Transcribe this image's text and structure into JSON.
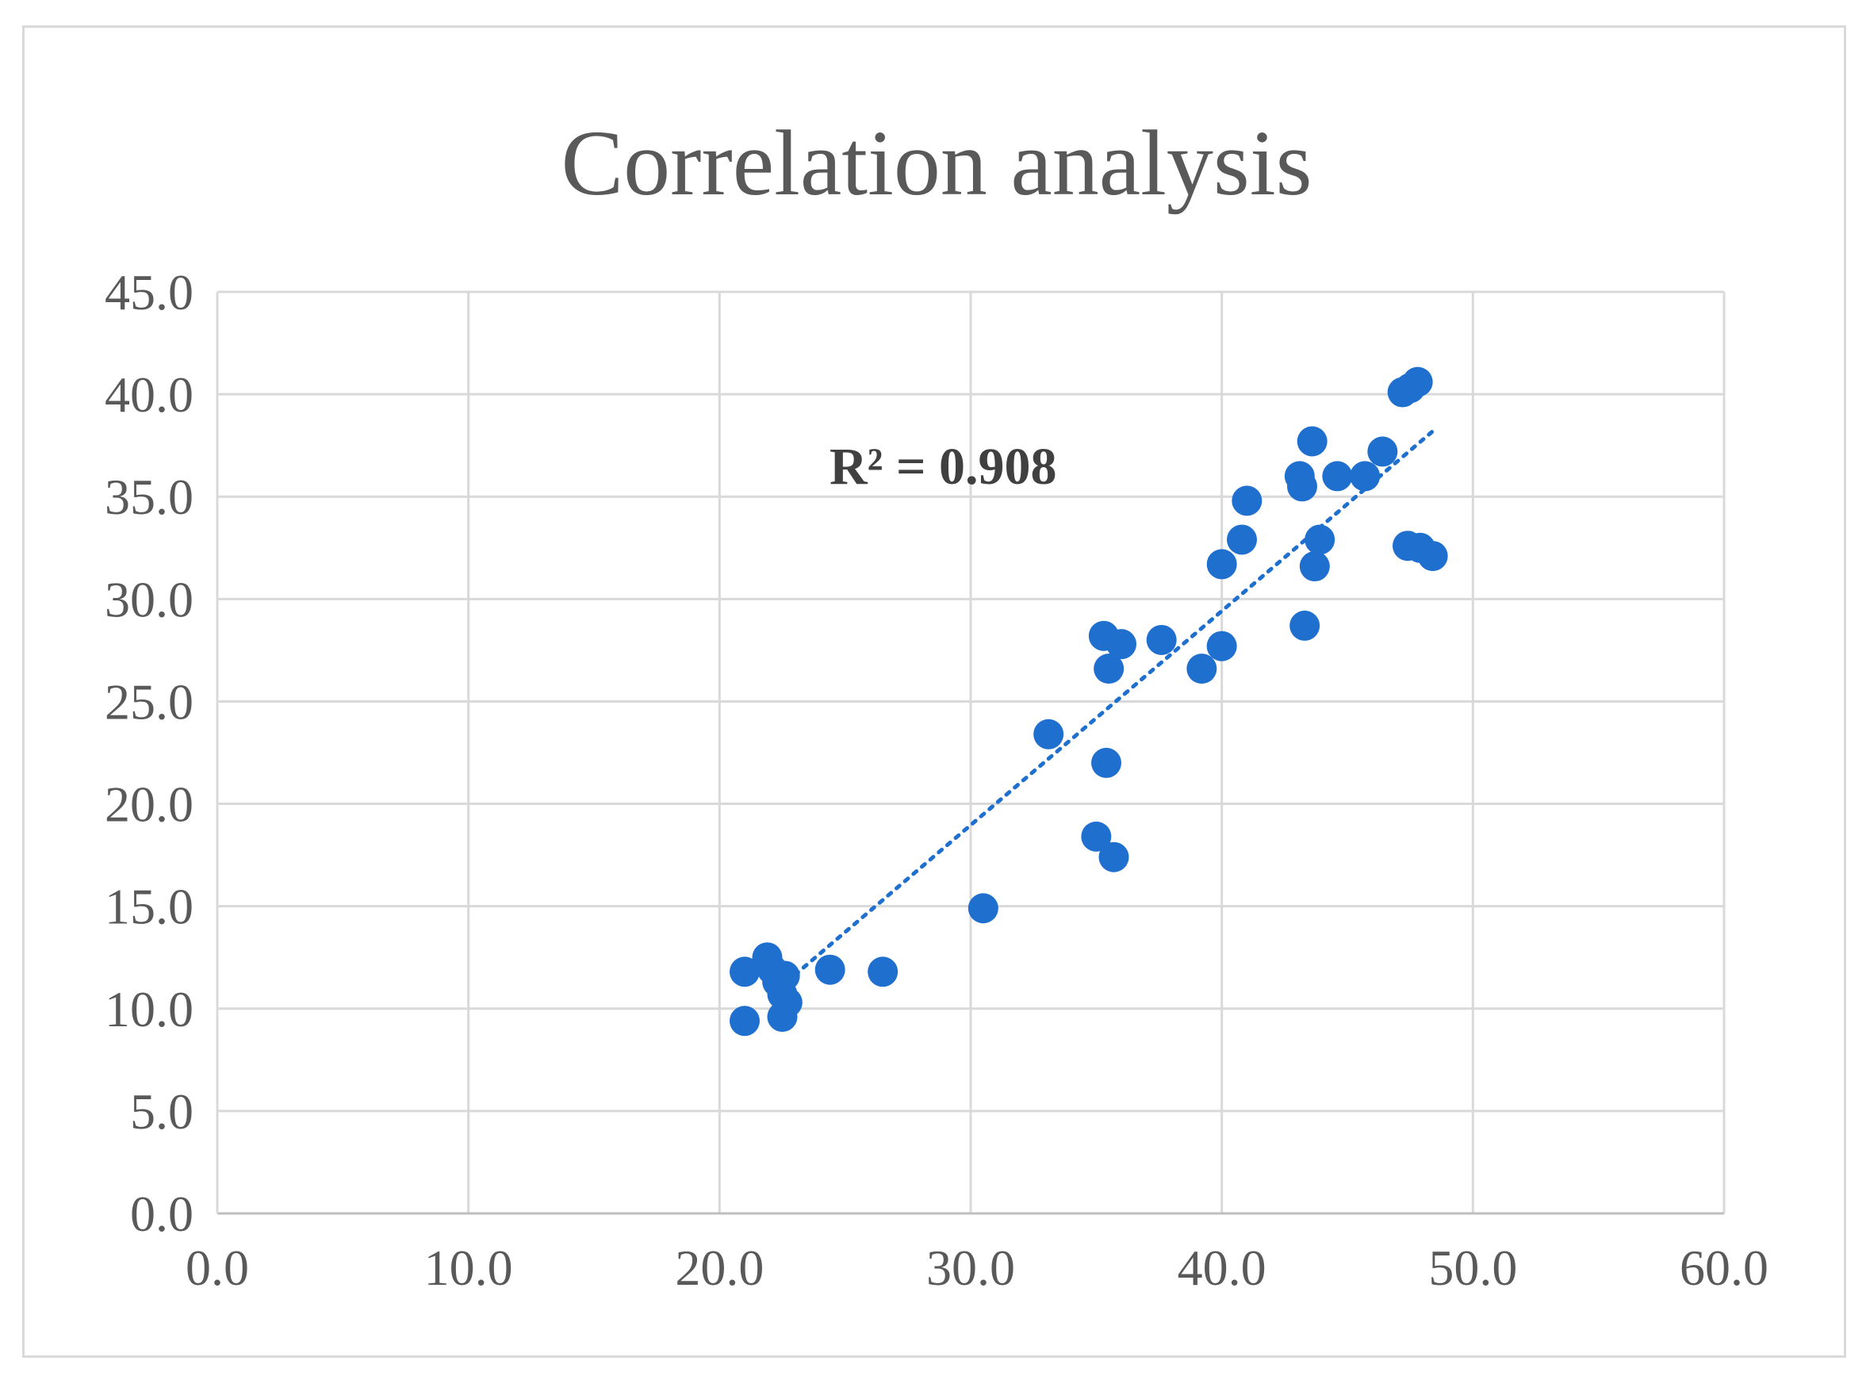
{
  "chart_data": {
    "type": "scatter",
    "title": "Correlation analysis",
    "xlabel": "",
    "ylabel": "",
    "xlim": [
      0,
      60
    ],
    "ylim": [
      0,
      45
    ],
    "x_ticks": [
      "0.0",
      "10.0",
      "20.0",
      "30.0",
      "40.0",
      "50.0",
      "60.0"
    ],
    "y_ticks": [
      "0.0",
      "5.0",
      "10.0",
      "15.0",
      "20.0",
      "25.0",
      "30.0",
      "35.0",
      "40.0",
      "45.0"
    ],
    "grid": true,
    "legend": "none",
    "annotation": "R² = 0.908",
    "trendline": {
      "type": "linear",
      "style": "dotted",
      "x_start": 22.0,
      "y_start": 10.6,
      "x_end": 48.5,
      "y_end": 38.3
    },
    "series": [
      {
        "color": "#1f6fcf",
        "points": [
          [
            21.0,
            11.8
          ],
          [
            21.0,
            9.4
          ],
          [
            21.9,
            12.5
          ],
          [
            22.1,
            11.9
          ],
          [
            22.3,
            11.3
          ],
          [
            22.5,
            10.7
          ],
          [
            22.6,
            11.6
          ],
          [
            22.5,
            9.6
          ],
          [
            22.7,
            10.3
          ],
          [
            24.4,
            11.9
          ],
          [
            26.5,
            11.8
          ],
          [
            30.5,
            14.9
          ],
          [
            33.1,
            23.4
          ],
          [
            35.0,
            18.4
          ],
          [
            35.3,
            28.2
          ],
          [
            35.4,
            22.0
          ],
          [
            35.5,
            26.6
          ],
          [
            35.7,
            17.4
          ],
          [
            36.0,
            27.8
          ],
          [
            37.6,
            28.0
          ],
          [
            39.2,
            26.6
          ],
          [
            40.0,
            31.7
          ],
          [
            40.0,
            27.7
          ],
          [
            40.8,
            32.9
          ],
          [
            41.0,
            34.8
          ],
          [
            43.1,
            36.0
          ],
          [
            43.2,
            35.5
          ],
          [
            43.3,
            28.7
          ],
          [
            43.6,
            37.7
          ],
          [
            43.7,
            31.6
          ],
          [
            43.9,
            32.9
          ],
          [
            44.6,
            36.0
          ],
          [
            45.7,
            36.0
          ],
          [
            46.4,
            37.2
          ],
          [
            47.2,
            40.1
          ],
          [
            47.5,
            40.3
          ],
          [
            47.8,
            40.6
          ],
          [
            47.4,
            32.6
          ],
          [
            47.9,
            32.5
          ],
          [
            48.4,
            32.1
          ]
        ]
      }
    ]
  }
}
